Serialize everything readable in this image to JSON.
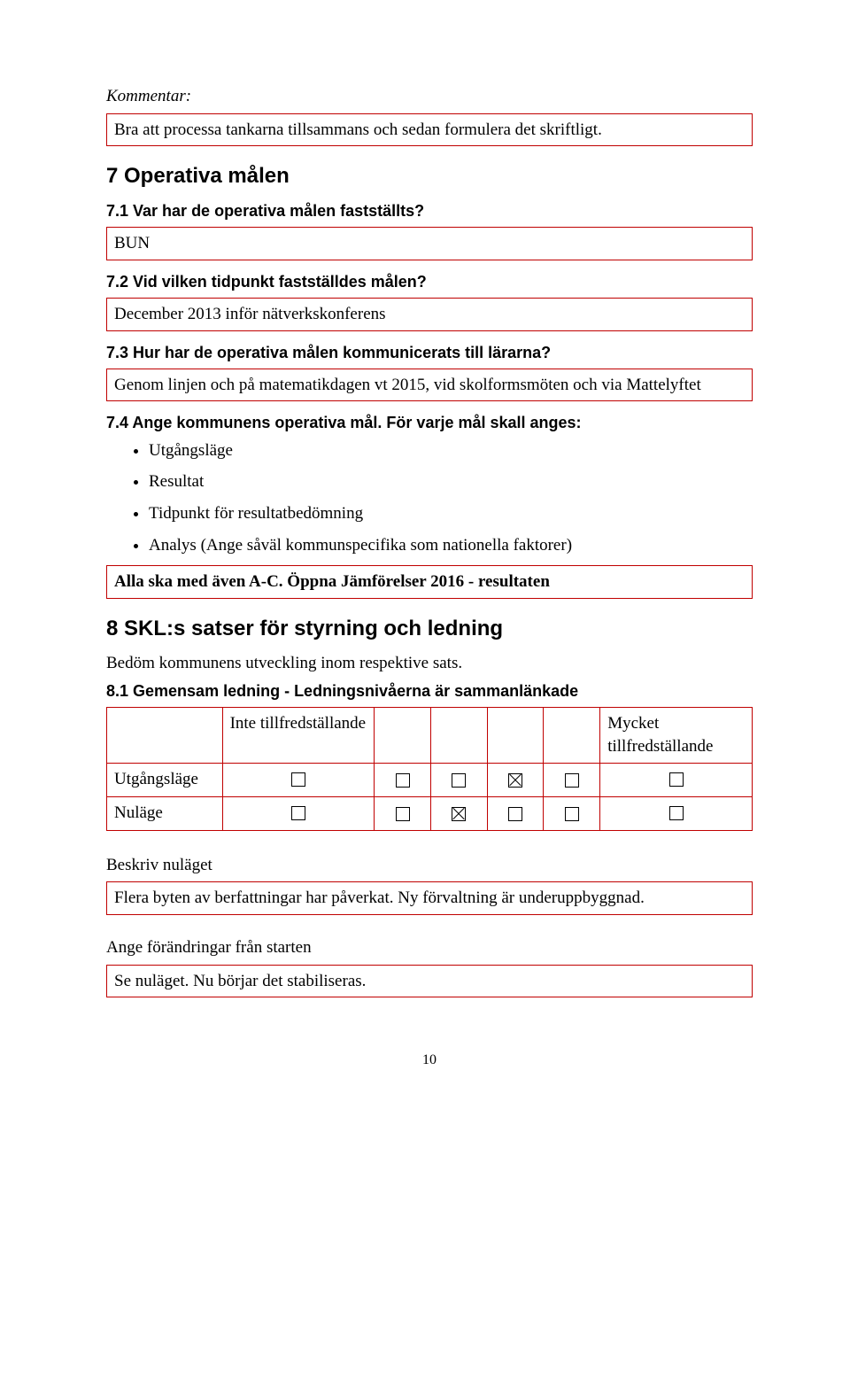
{
  "kommentar_label": "Kommentar:",
  "kommentar_box": "Bra att processa tankarna tillsammans och sedan formulera det skriftligt.",
  "section7_title": "7 Operativa målen",
  "q71": "7.1 Var har de operativa målen fastställts?",
  "a71": "BUN",
  "q72": "7.2 Vid vilken tidpunkt fastställdes målen?",
  "a72": "December 2013 inför nätverkskonferens",
  "q73": "7.3 Hur har de operativa målen kommunicerats till lärarna?",
  "a73": "Genom linjen och på matematikdagen vt 2015, vid skolformsmöten och via Mattelyftet",
  "q74": "7.4 Ange kommunens operativa mål. För varje mål skall anges:",
  "bullets": {
    "b1": "Utgångsläge",
    "b2": "Resultat",
    "b3": "Tidpunkt för resultatbedömning",
    "b4": "Analys (Ange såväl kommunspecifika som nationella faktorer)"
  },
  "a74": "Alla ska med även A-C. Öppna Jämförelser 2016 - resultaten",
  "section8_title": "8 SKL:s satser för styrning och ledning",
  "section8_sub": "Bedöm kommunens utveckling inom respektive sats.",
  "q81": "8.1 Gemensam ledning - Ledningsnivåerna är sammanlänkade",
  "rating": {
    "low": "Inte tillfredställande",
    "high": "Mycket tillfredställande",
    "row_utg": "Utgångsläge",
    "row_nu": "Nuläge"
  },
  "beskriv_nulaget": "Beskriv nuläget",
  "nulage_box": "Flera byten av berfattningar har påverkat.  Ny förvaltning är underuppbyggnad.",
  "ange_forandr": "Ange förändringar från starten",
  "forandr_box": "Se nuläget. Nu börjar det stabiliseras.",
  "page_number": "10"
}
